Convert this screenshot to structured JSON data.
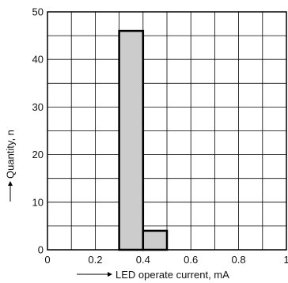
{
  "chart_data": {
    "type": "bar",
    "xlabel": "LED operate current, mA",
    "ylabel": "Quantity, n",
    "xlim": [
      0,
      1
    ],
    "ylim": [
      0,
      50
    ],
    "grid": true,
    "x_ticks": [
      "0",
      "0.2",
      "0.4",
      "0.6",
      "0.8",
      "1"
    ],
    "y_ticks": [
      "0",
      "10",
      "20",
      "30",
      "40",
      "50"
    ],
    "bars": [
      {
        "x_start": 0.3,
        "x_end": 0.4,
        "value": 46
      },
      {
        "x_start": 0.4,
        "x_end": 0.5,
        "value": 4
      }
    ],
    "bar_fill": "#cccccc",
    "bar_stroke": "#000000"
  }
}
